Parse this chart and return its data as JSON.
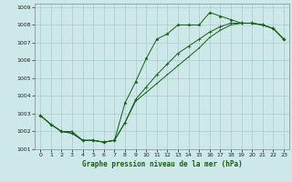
{
  "title": "Graphe pression niveau de la mer (hPa)",
  "bg_color": "#cce8e8",
  "grid_color": "#aacccc",
  "line_color": "#1a5c1a",
  "xlim": [
    -0.5,
    23.5
  ],
  "ylim": [
    1001,
    1009.2
  ],
  "xticks": [
    0,
    1,
    2,
    3,
    4,
    5,
    6,
    7,
    8,
    9,
    10,
    11,
    12,
    13,
    14,
    15,
    16,
    17,
    18,
    19,
    20,
    21,
    22,
    23
  ],
  "yticks": [
    1001,
    1002,
    1003,
    1004,
    1005,
    1006,
    1007,
    1008,
    1009
  ],
  "series1_x": [
    0,
    1,
    2,
    3,
    4,
    5,
    6,
    7,
    8,
    9,
    10,
    11,
    12,
    13,
    14,
    15,
    16,
    17,
    18,
    19,
    20,
    21,
    22,
    23
  ],
  "series1_y": [
    1002.9,
    1002.4,
    1002.0,
    1001.9,
    1001.5,
    1001.5,
    1001.4,
    1001.5,
    1003.6,
    1004.8,
    1006.1,
    1007.2,
    1007.5,
    1008.0,
    1008.0,
    1008.0,
    1008.7,
    1008.5,
    1008.3,
    1008.1,
    1008.1,
    1008.0,
    1007.8,
    1007.2
  ],
  "series2_x": [
    0,
    1,
    2,
    3,
    4,
    5,
    6,
    7,
    8,
    9,
    10,
    11,
    12,
    13,
    14,
    15,
    16,
    17,
    18,
    19,
    20,
    21,
    22,
    23
  ],
  "series2_y": [
    1002.9,
    1002.4,
    1002.0,
    1001.9,
    1001.5,
    1001.5,
    1001.4,
    1001.5,
    1002.5,
    1003.8,
    1004.5,
    1005.2,
    1005.8,
    1006.4,
    1006.8,
    1007.2,
    1007.6,
    1007.9,
    1008.1,
    1008.1,
    1008.1,
    1008.0,
    1007.8,
    1007.2
  ],
  "series3_x": [
    0,
    1,
    2,
    3,
    4,
    5,
    6,
    7,
    8,
    9,
    10,
    11,
    12,
    13,
    14,
    15,
    16,
    17,
    18,
    19,
    20,
    21,
    22,
    23
  ],
  "series3_y": [
    1002.9,
    1002.4,
    1002.0,
    1002.0,
    1001.5,
    1001.5,
    1001.4,
    1001.5,
    1002.5,
    1003.7,
    1004.2,
    1004.7,
    1005.2,
    1005.7,
    1006.2,
    1006.7,
    1007.3,
    1007.7,
    1008.0,
    1008.1,
    1008.1,
    1008.0,
    1007.8,
    1007.2
  ]
}
